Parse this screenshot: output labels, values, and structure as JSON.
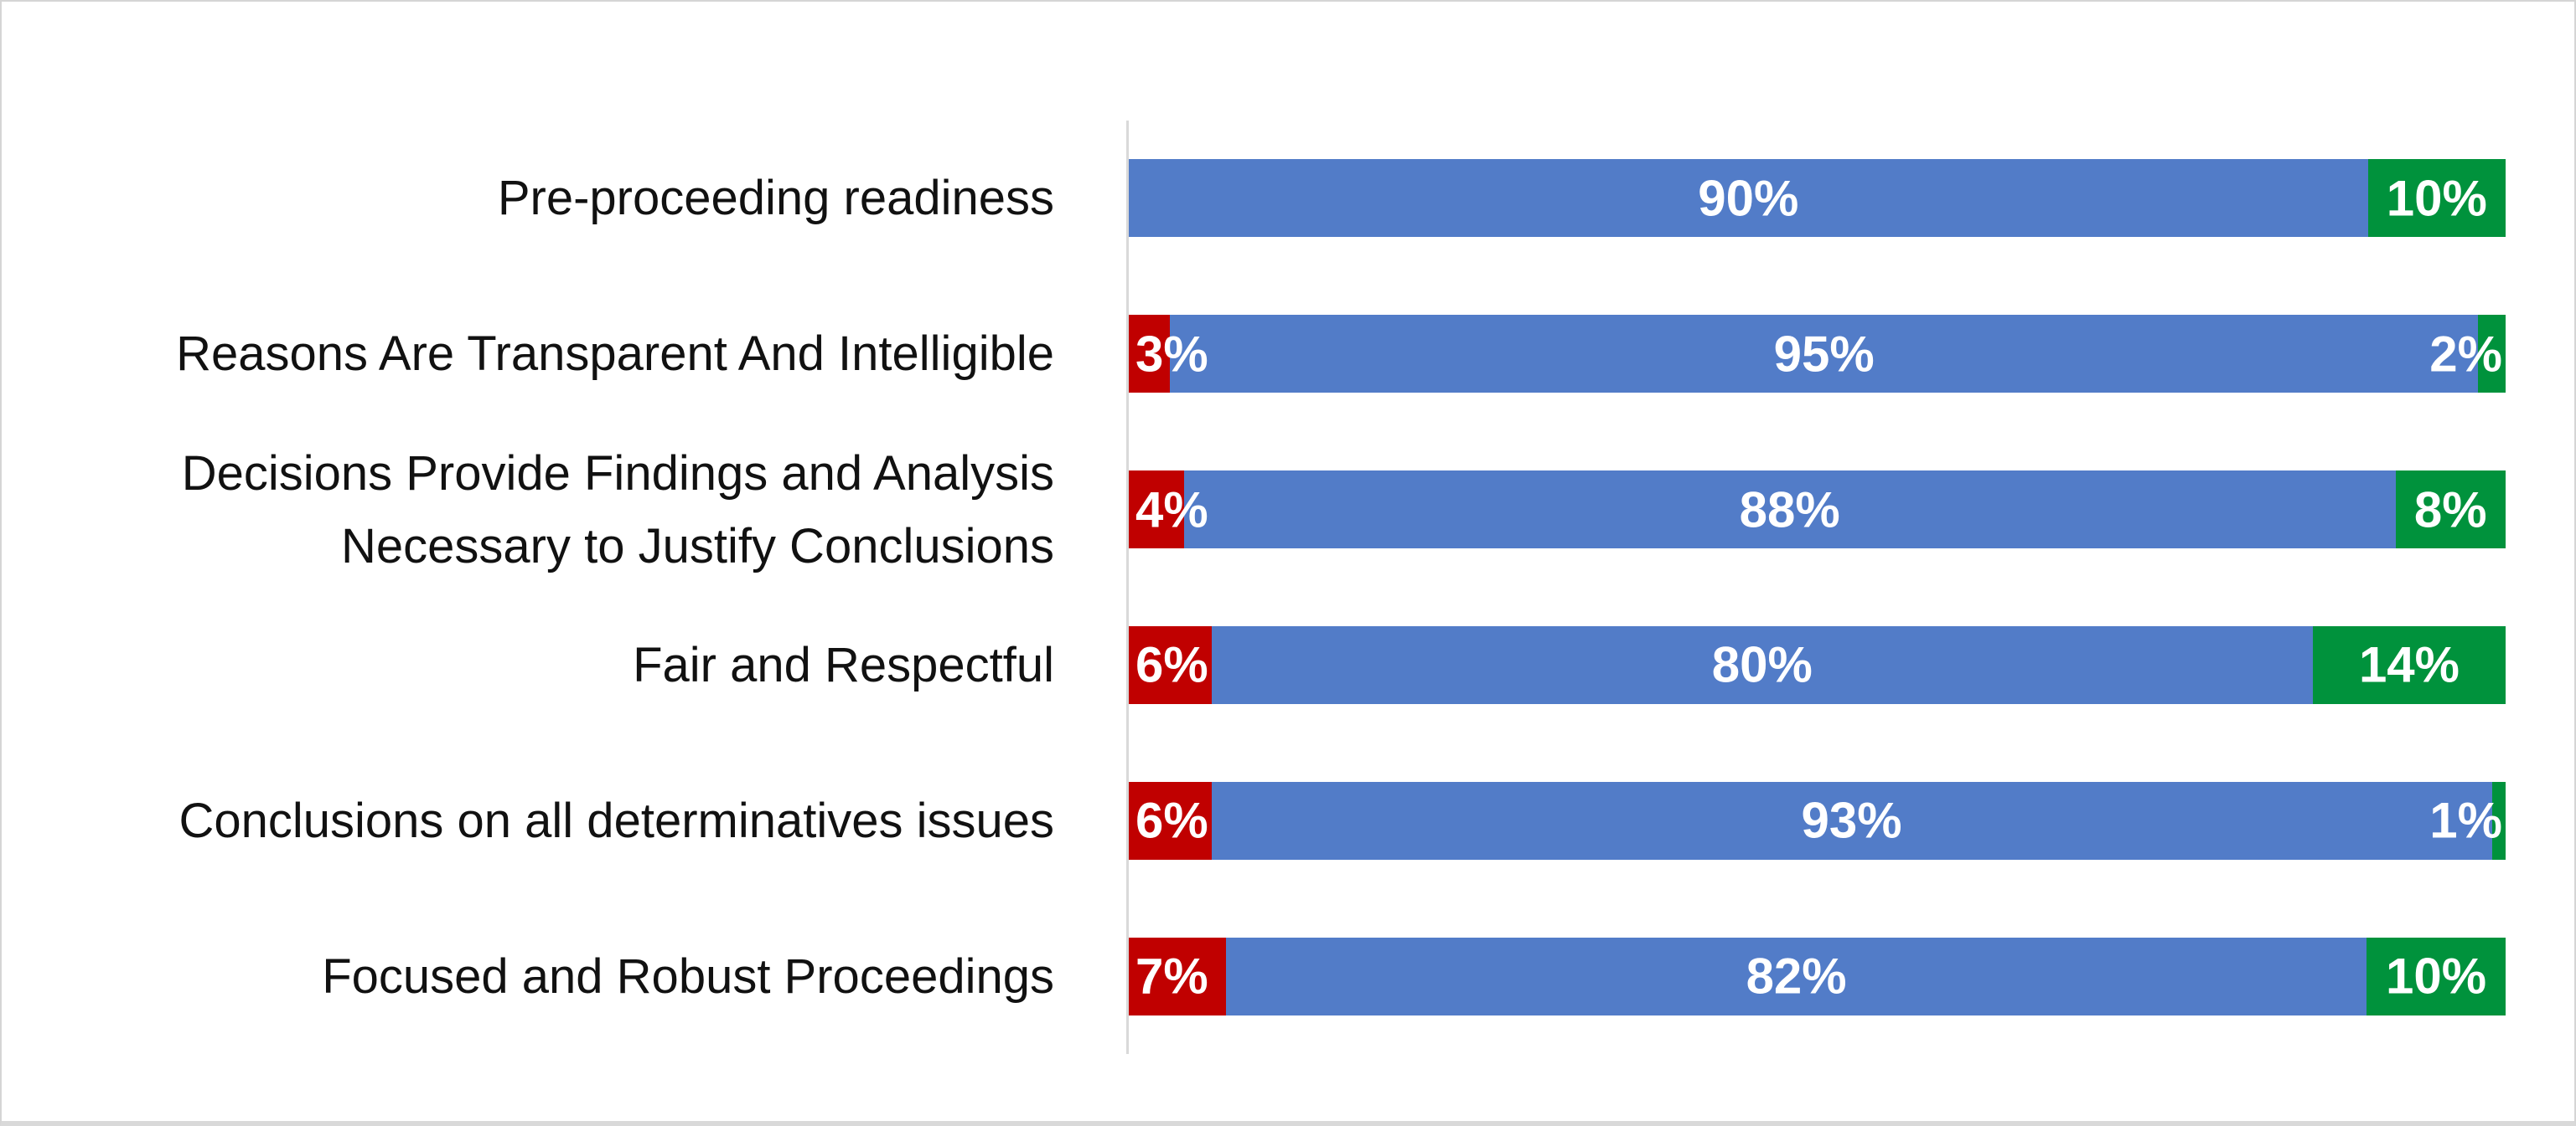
{
  "chart_data": {
    "type": "bar",
    "subtype": "horizontal_stacked_100",
    "title": "",
    "legend": "none",
    "xlim": [
      0,
      100
    ],
    "background_color": "#FFFFFF",
    "axis_line_color": "#D9D9D9",
    "value_label_color": "#FFFFFF",
    "categories": [
      "Pre-proceeding readiness",
      "Reasons Are Transparent And Intelligible",
      "Decisions Provide Findings and Analysis\nNecessary to Justify Conclusions",
      "Fair and Respectful",
      "Conclusions on all determinatives issues",
      "Focused and Robust Proceedings"
    ],
    "series": [
      {
        "name": "red",
        "color": "#C00000",
        "values": [
          null,
          3,
          4,
          6,
          6,
          7
        ],
        "labels": [
          null,
          "3%",
          "4%",
          "6%",
          "6%",
          "7%"
        ]
      },
      {
        "name": "blue",
        "color": "#527CC8",
        "values": [
          90,
          95,
          88,
          80,
          93,
          82
        ],
        "labels": [
          "90%",
          "95%",
          "88%",
          "80%",
          "93%",
          "82%"
        ]
      },
      {
        "name": "green",
        "color": "#00923C",
        "values": [
          10,
          2,
          8,
          14,
          1,
          10
        ],
        "labels": [
          "10%",
          "2%",
          "8%",
          "14%",
          "1%",
          "10%"
        ]
      }
    ]
  }
}
